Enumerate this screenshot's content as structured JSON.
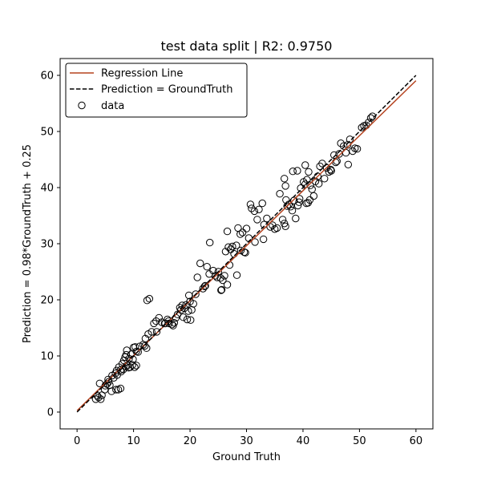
{
  "chart_data": {
    "type": "scatter",
    "title": "test data split | R2: 0.9750",
    "xlabel": "Ground Truth",
    "ylabel": "Prediction = 0.98*GroundTruth + 0.25",
    "xlim": [
      -3,
      63
    ],
    "ylim": [
      -3,
      63
    ],
    "xticks": [
      0,
      10,
      20,
      30,
      40,
      50,
      60
    ],
    "yticks": [
      0,
      10,
      20,
      30,
      40,
      50,
      60
    ],
    "grid": false,
    "legend_position": "top-left",
    "legend": [
      {
        "label": "Regression Line",
        "kind": "line",
        "color": "#b5431f",
        "dash": "solid"
      },
      {
        "label": "Prediction = GroundTruth",
        "kind": "line",
        "color": "#000000",
        "dash": "dashed"
      },
      {
        "label": "data",
        "kind": "marker",
        "color": "#000000"
      }
    ],
    "regression_line": {
      "slope": 0.98,
      "intercept": 0.25,
      "x": [
        0,
        60
      ],
      "color": "#b5431f"
    },
    "identity_line": {
      "x": [
        0,
        60
      ],
      "y": [
        0,
        60
      ],
      "color": "#000000"
    },
    "points": [
      [
        3.3,
        2.3
      ],
      [
        3.8,
        2.6
      ],
      [
        4.2,
        2.3
      ],
      [
        4.4,
        3.0
      ],
      [
        3.6,
        2.9
      ],
      [
        4.9,
        4.0
      ],
      [
        5.3,
        5.0
      ],
      [
        4.0,
        5.1
      ],
      [
        5.8,
        4.8
      ],
      [
        5.5,
        5.8
      ],
      [
        6.2,
        6.5
      ],
      [
        6.8,
        6.9
      ],
      [
        7.0,
        7.4
      ],
      [
        7.4,
        8.0
      ],
      [
        7.7,
        7.5
      ],
      [
        8.0,
        8.6
      ],
      [
        8.3,
        9.2
      ],
      [
        8.5,
        9.8
      ],
      [
        8.7,
        10.2
      ],
      [
        8.8,
        11.0
      ],
      [
        9.2,
        9.5
      ],
      [
        9.6,
        10.3
      ],
      [
        10.0,
        11.5
      ],
      [
        10.3,
        11.6
      ],
      [
        10.5,
        10.8
      ],
      [
        9.8,
        8.4
      ],
      [
        9.4,
        8.0
      ],
      [
        9.1,
        7.9
      ],
      [
        8.9,
        8.3
      ],
      [
        8.6,
        8.1
      ],
      [
        8.2,
        7.6
      ],
      [
        7.8,
        7.2
      ],
      [
        7.1,
        6.6
      ],
      [
        7.3,
        4.0
      ],
      [
        7.7,
        4.2
      ],
      [
        6.9,
        4.0
      ],
      [
        6.1,
        3.7
      ],
      [
        5.0,
        4.7
      ],
      [
        10.2,
        8.0
      ],
      [
        10.5,
        8.3
      ],
      [
        11.1,
        11.7
      ],
      [
        12.0,
        11.8
      ],
      [
        12.3,
        11.4
      ],
      [
        12.1,
        13.1
      ],
      [
        12.6,
        13.9
      ],
      [
        13.2,
        14.3
      ],
      [
        13.6,
        15.8
      ],
      [
        14.0,
        16.2
      ],
      [
        14.5,
        16.8
      ],
      [
        15.0,
        16.0
      ],
      [
        15.5,
        15.8
      ],
      [
        16.0,
        16.5
      ],
      [
        16.3,
        15.8
      ],
      [
        16.8,
        15.6
      ],
      [
        17.2,
        15.9
      ],
      [
        17.5,
        16.8
      ],
      [
        17.8,
        17.4
      ],
      [
        18.2,
        18.6
      ],
      [
        18.6,
        19.0
      ],
      [
        19.0,
        18.5
      ],
      [
        19.3,
        19.1
      ],
      [
        19.7,
        18.0
      ],
      [
        20.0,
        19.7
      ],
      [
        20.3,
        18.2
      ],
      [
        20.6,
        19.3
      ],
      [
        19.5,
        16.5
      ],
      [
        20.1,
        16.4
      ],
      [
        18.8,
        16.9
      ],
      [
        17.0,
        15.4
      ],
      [
        16.2,
        16.2
      ],
      [
        12.4,
        19.9
      ],
      [
        12.8,
        20.2
      ],
      [
        19.8,
        20.8
      ],
      [
        21.3,
        24.0
      ],
      [
        21.8,
        26.5
      ],
      [
        22.3,
        22.0
      ],
      [
        22.6,
        22.4
      ],
      [
        23.0,
        25.9
      ],
      [
        23.4,
        24.6
      ],
      [
        23.5,
        30.2
      ],
      [
        24.1,
        25.2
      ],
      [
        24.5,
        24.3
      ],
      [
        25.0,
        25.0
      ],
      [
        25.4,
        23.9
      ],
      [
        25.8,
        23.5
      ],
      [
        26.1,
        24.3
      ],
      [
        25.5,
        21.7
      ],
      [
        25.6,
        21.8
      ],
      [
        26.6,
        22.7
      ],
      [
        26.3,
        28.6
      ],
      [
        26.8,
        29.4
      ],
      [
        27.2,
        29.0
      ],
      [
        27.5,
        29.5
      ],
      [
        27.8,
        28.2
      ],
      [
        28.2,
        29.7
      ],
      [
        28.5,
        32.8
      ],
      [
        28.9,
        31.7
      ],
      [
        29.3,
        32.0
      ],
      [
        29.6,
        28.5
      ],
      [
        30.0,
        32.7
      ],
      [
        30.4,
        31.0
      ],
      [
        30.7,
        37.0
      ],
      [
        30.9,
        36.3
      ],
      [
        31.4,
        35.8
      ],
      [
        31.9,
        34.3
      ],
      [
        32.2,
        36.1
      ],
      [
        32.8,
        37.2
      ],
      [
        28.3,
        24.4
      ],
      [
        26.6,
        32.2
      ],
      [
        29.0,
        28.8
      ],
      [
        33.1,
        33.4
      ],
      [
        33.6,
        34.5
      ],
      [
        34.2,
        33.0
      ],
      [
        34.6,
        33.3
      ],
      [
        35.0,
        32.6
      ],
      [
        35.4,
        32.8
      ],
      [
        35.9,
        38.9
      ],
      [
        36.4,
        34.3
      ],
      [
        36.7,
        33.6
      ],
      [
        36.9,
        33.1
      ],
      [
        37.2,
        36.7
      ],
      [
        37.5,
        37.0
      ],
      [
        37.8,
        36.6
      ],
      [
        38.1,
        35.9
      ],
      [
        38.4,
        37.7
      ],
      [
        38.7,
        34.5
      ],
      [
        39.1,
        36.8
      ],
      [
        39.4,
        38.0
      ],
      [
        39.6,
        39.9
      ],
      [
        40.1,
        41.0
      ],
      [
        40.4,
        40.6
      ],
      [
        40.7,
        41.4
      ],
      [
        41.0,
        42.8
      ],
      [
        41.3,
        40.4
      ],
      [
        41.6,
        39.7
      ],
      [
        41.9,
        38.5
      ],
      [
        42.2,
        41.1
      ],
      [
        42.6,
        42.0
      ],
      [
        43.0,
        43.8
      ],
      [
        43.4,
        44.3
      ],
      [
        43.8,
        41.6
      ],
      [
        44.2,
        43.5
      ],
      [
        44.6,
        42.8
      ],
      [
        45.0,
        43.0
      ],
      [
        45.5,
        45.8
      ],
      [
        46.0,
        44.7
      ],
      [
        46.4,
        46.0
      ],
      [
        46.7,
        47.9
      ],
      [
        47.2,
        47.4
      ],
      [
        47.6,
        46.2
      ],
      [
        48.0,
        44.1
      ],
      [
        48.3,
        48.6
      ],
      [
        48.8,
        46.5
      ],
      [
        49.2,
        47.0
      ],
      [
        49.6,
        46.9
      ],
      [
        50.4,
        50.7
      ],
      [
        50.8,
        51.0
      ],
      [
        51.2,
        51.1
      ],
      [
        51.6,
        51.6
      ],
      [
        52.0,
        52.4
      ],
      [
        52.3,
        52.7
      ],
      [
        36.7,
        41.6
      ],
      [
        36.9,
        40.3
      ],
      [
        39.0,
        43.0
      ],
      [
        40.4,
        44.0
      ],
      [
        38.2,
        42.9
      ],
      [
        40.9,
        37.3
      ],
      [
        41.2,
        37.8
      ],
      [
        40.6,
        37.2
      ],
      [
        39.3,
        37.4
      ],
      [
        37.0,
        37.8
      ],
      [
        33.0,
        30.8
      ],
      [
        31.5,
        30.3
      ],
      [
        29.8,
        28.4
      ],
      [
        27.0,
        26.2
      ],
      [
        24.8,
        24.0
      ],
      [
        22.7,
        22.5
      ],
      [
        21.0,
        21.0
      ],
      [
        18.4,
        18.2
      ],
      [
        15.6,
        15.8
      ],
      [
        14.1,
        14.3
      ],
      [
        11.7,
        12.0
      ],
      [
        10.8,
        10.7
      ],
      [
        9.9,
        9.4
      ],
      [
        6.5,
        6.1
      ],
      [
        5.6,
        5.4
      ],
      [
        42.8,
        40.7
      ],
      [
        44.9,
        43.2
      ],
      [
        45.8,
        44.5
      ],
      [
        47.9,
        47.6
      ]
    ]
  }
}
